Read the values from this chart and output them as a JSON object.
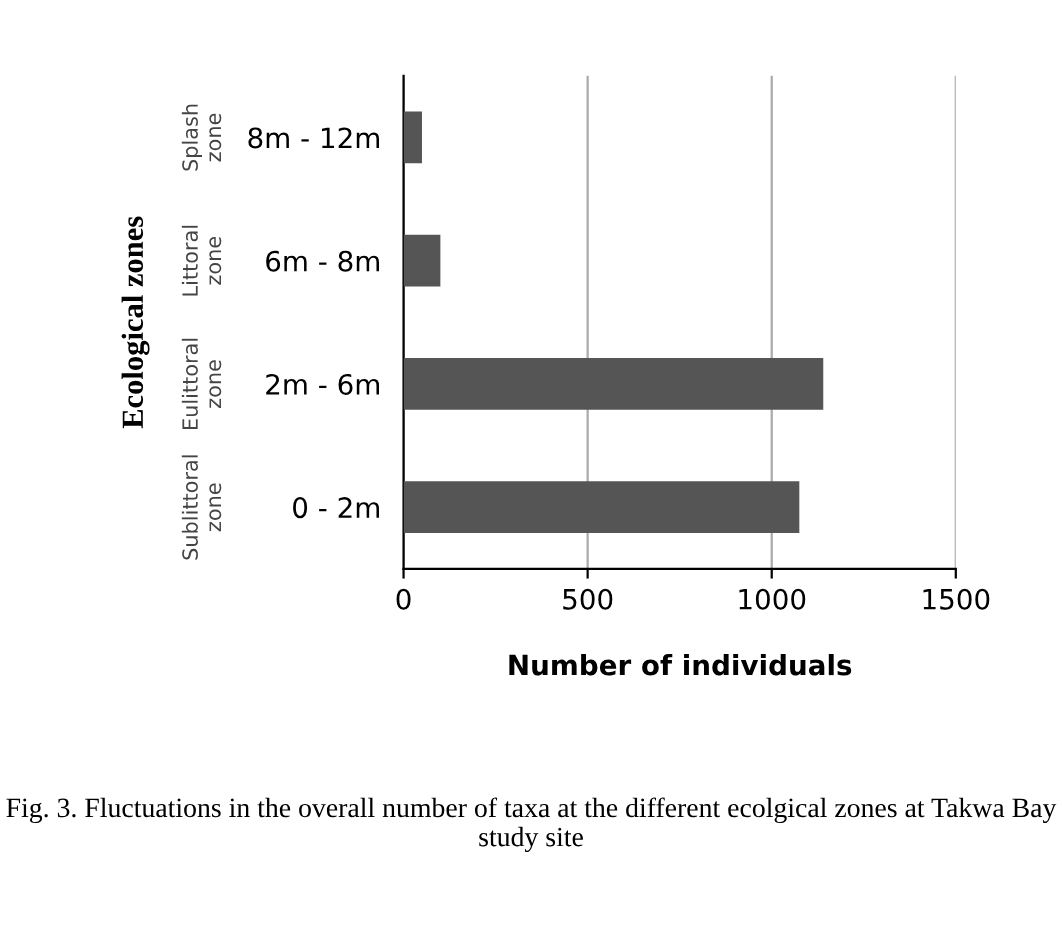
{
  "chart_data": {
    "type": "bar",
    "orientation": "horizontal",
    "categories": [
      "8m - 12m",
      "6m - 8m",
      "2m - 6m",
      "0 - 2m"
    ],
    "values": [
      50,
      100,
      1140,
      1075
    ],
    "color": "#555555",
    "xlim": [
      0,
      1500
    ],
    "xticks": [
      0,
      500,
      1000,
      1500
    ],
    "grid": "x",
    "xlabel": "Number of individuals",
    "ylabel": "Ecological zones",
    "annotations": [
      "Splash zone",
      "Littoral zone",
      "Eulittoral zone",
      "Sublittoral zone",
      "Fig. 3. Fluctuations in the overall number of taxa at the different ecolgical zones at Takwa Bay study site"
    ]
  }
}
